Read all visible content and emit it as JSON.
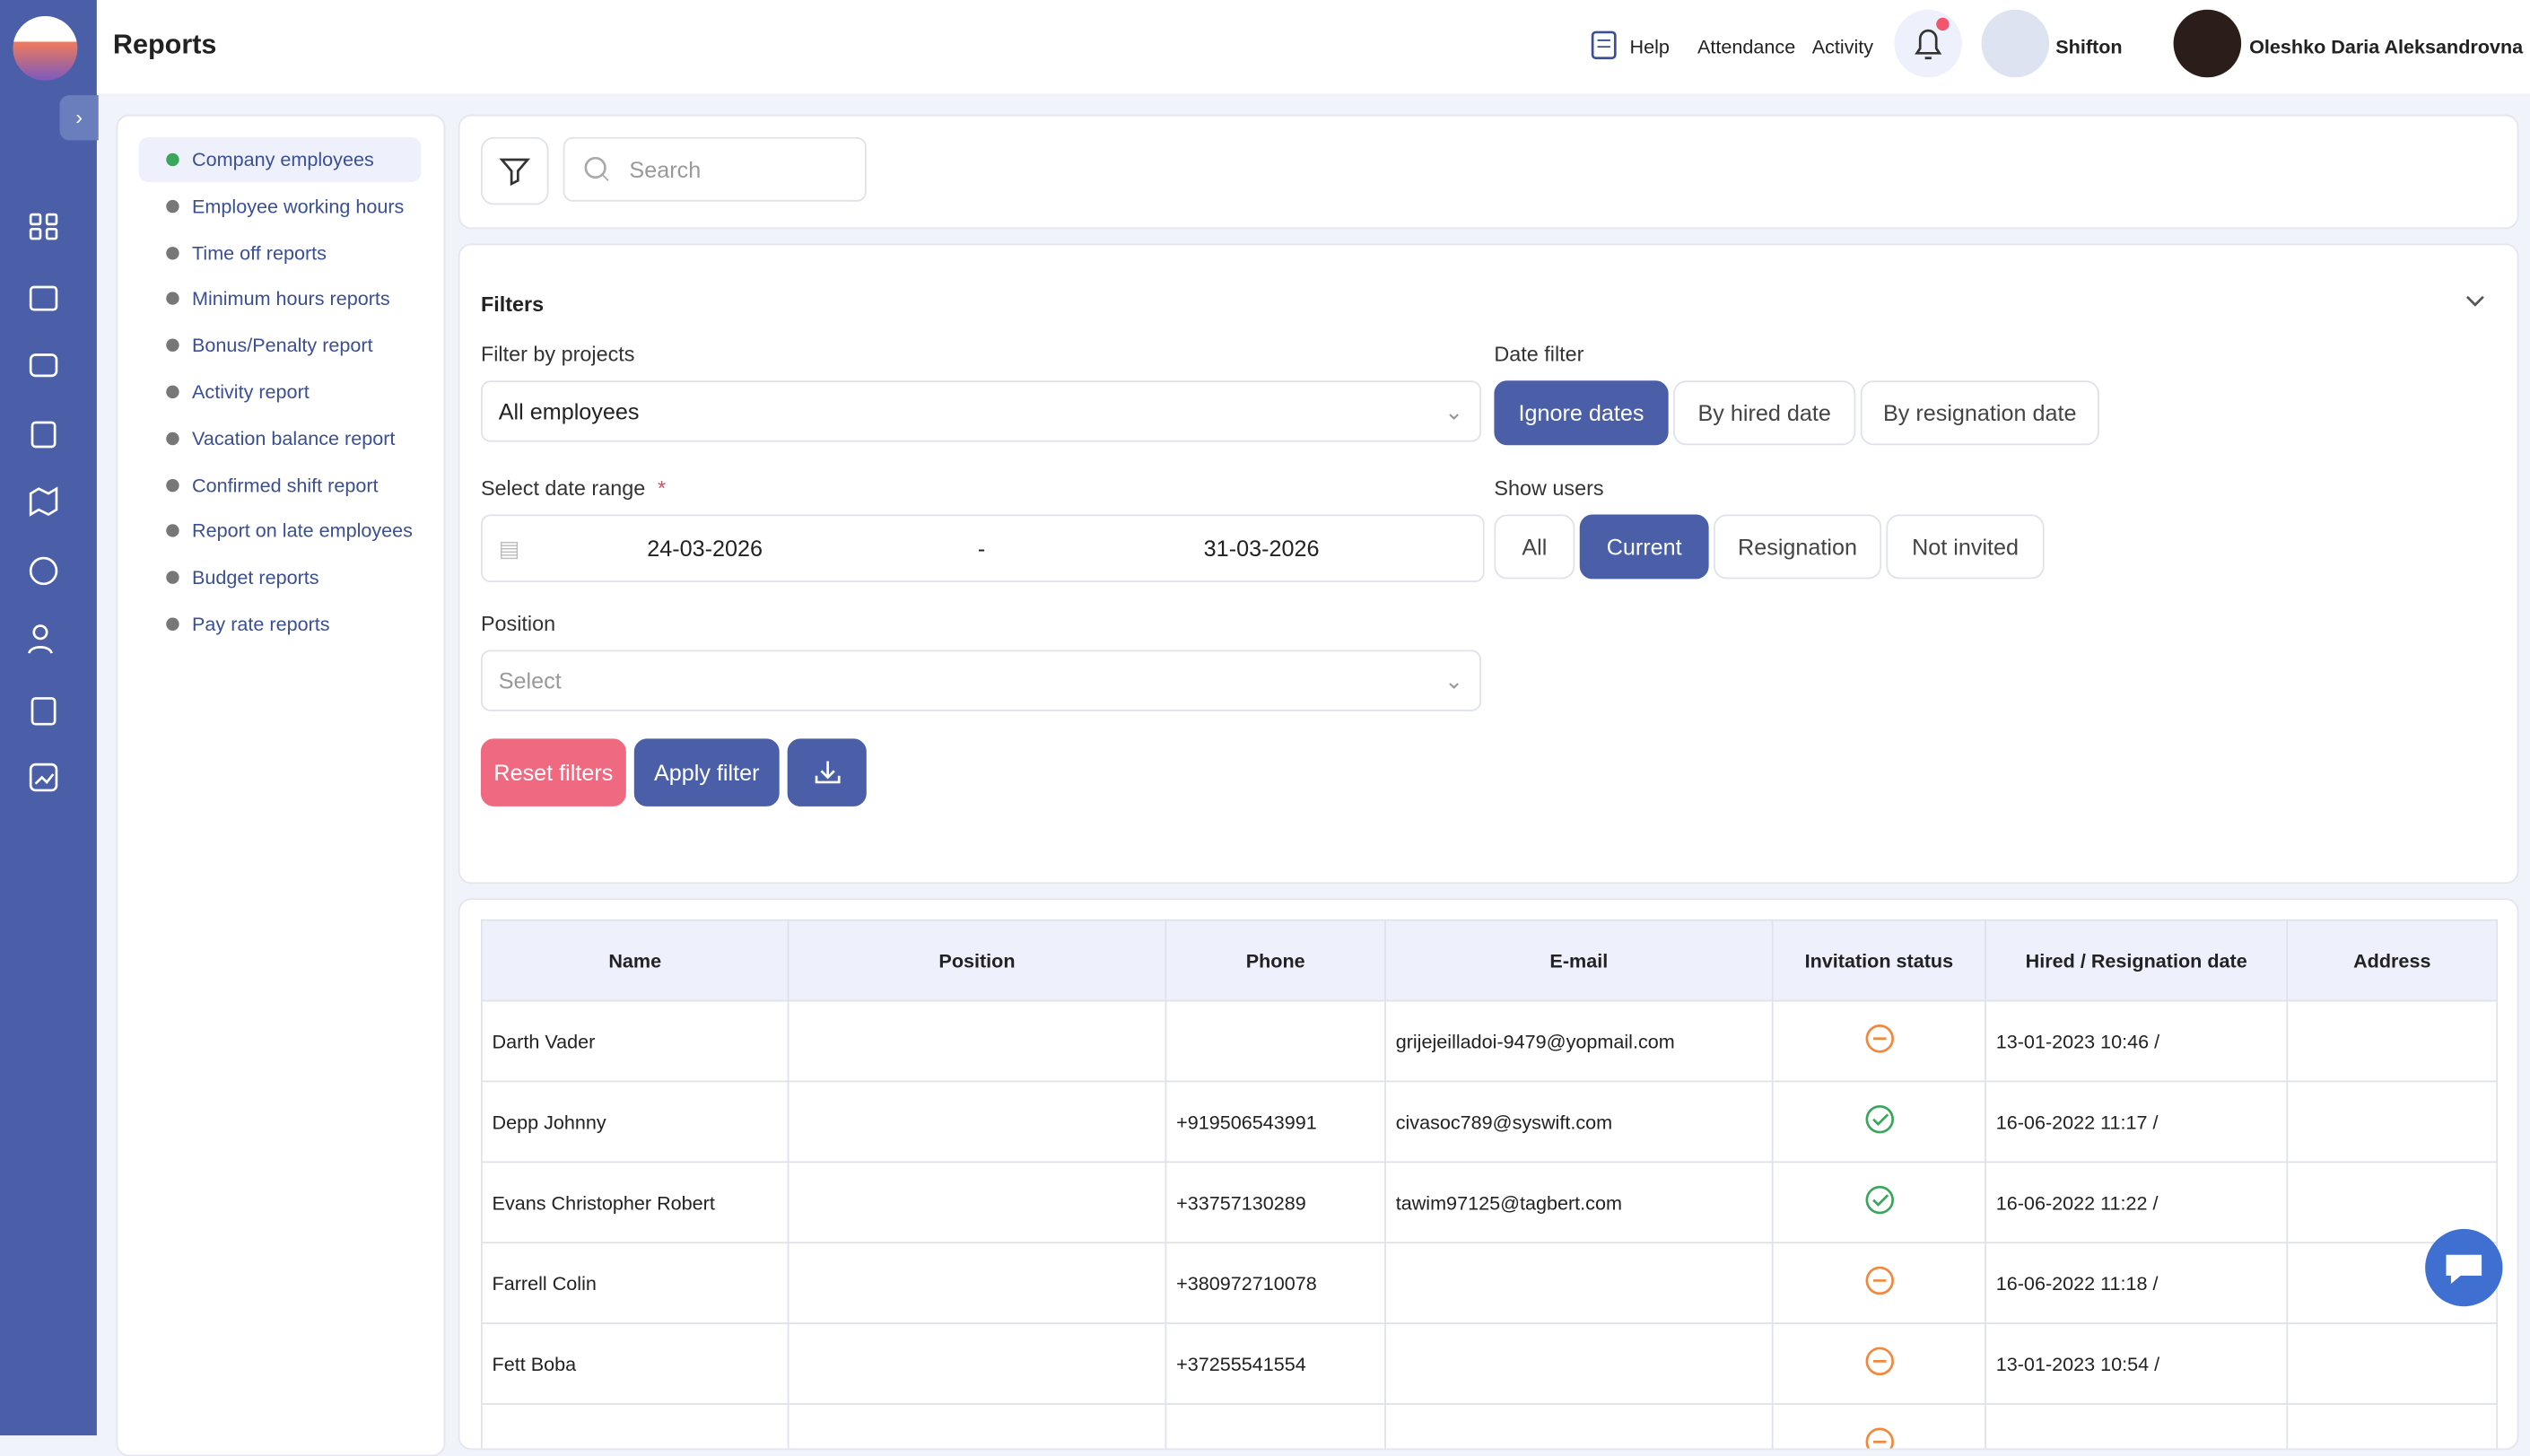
{
  "header": {
    "title": "Reports",
    "help": "Help",
    "attendance": "Attendance",
    "activity": "Activity",
    "company": "Shifton",
    "user": "Oleshko Daria Aleksandrovna"
  },
  "menu": [
    "Company employees",
    "Employee working hours",
    "Time off reports",
    "Minimum hours reports",
    "Bonus/Penalty report",
    "Activity report",
    "Vacation balance report",
    "Confirmed shift report",
    "Report on late employees",
    "Budget reports",
    "Pay rate reports"
  ],
  "search": {
    "placeholder": "Search"
  },
  "filters": {
    "title": "Filters",
    "project_label": "Filter by projects",
    "project_value": "All employees",
    "date_filter_label": "Date filter",
    "date_options": [
      "Ignore dates",
      "By hired date",
      "By resignation date"
    ],
    "range_label": "Select date range",
    "required": "*",
    "date_from": "24-03-2026",
    "separator": "-",
    "date_to": "31-03-2026",
    "show_users_label": "Show users",
    "user_options": [
      "All",
      "Current",
      "Resignation",
      "Not invited"
    ],
    "position_label": "Position",
    "position_placeholder": "Select",
    "reset": "Reset filters",
    "apply": "Apply filter"
  },
  "table": {
    "headers": [
      "Name",
      "Position",
      "Phone",
      "E-mail",
      "Invitation status",
      "Hired / Resignation date",
      "Address"
    ],
    "rows": [
      {
        "name": "Darth Vader",
        "email": "grijejeilladoi-9479@yopmail.com",
        "date": "13-01-2023 10:46 /"
      },
      {
        "name": "Depp Johnny",
        "phone": "+919506543991",
        "email": "civasoc789@syswift.com",
        "date": "16-06-2022 11:17 /"
      },
      {
        "name": "Evans Christopher Robert",
        "phone": "+33757130289",
        "email": "tawim97125@tagbert.com",
        "date": "16-06-2022 11:22 /"
      },
      {
        "name": "Farrell Colin",
        "phone": "+380972710078",
        "date": "16-06-2022 11:18 /"
      },
      {
        "name": "Fett Boba",
        "phone": "+37255541554",
        "date": "13-01-2023 10:54 /"
      }
    ]
  }
}
